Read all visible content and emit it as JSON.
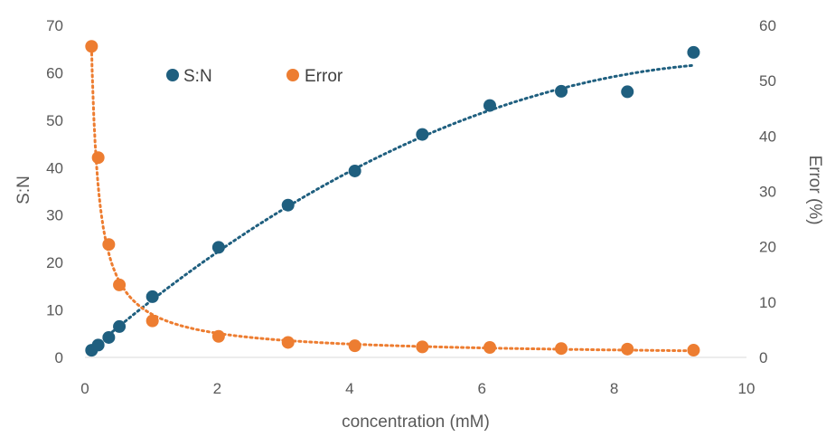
{
  "chart_data": {
    "type": "scatter",
    "xlabel": "concentration (mM)",
    "ylabel": "S:N",
    "y2label": "Error (%)",
    "xlim": [
      0,
      10
    ],
    "ylim": [
      0,
      70
    ],
    "y2lim": [
      0,
      60
    ],
    "xticks": [
      0,
      2,
      4,
      6,
      8,
      10
    ],
    "yticks": [
      0,
      10,
      20,
      30,
      40,
      50,
      60,
      70
    ],
    "y2ticks": [
      0,
      10,
      20,
      30,
      40,
      50,
      60
    ],
    "legend_position": "top-left",
    "grid": false,
    "series": [
      {
        "name": "S:N",
        "axis": "left",
        "color": "#1f5f7f",
        "trendline": "dotted",
        "x": [
          0.1,
          0.2,
          0.36,
          0.52,
          1.02,
          2.02,
          3.07,
          4.08,
          5.1,
          6.12,
          7.2,
          8.2,
          9.2
        ],
        "y": [
          1.5,
          2.6,
          4.2,
          6.5,
          12.8,
          23.2,
          32.1,
          39.3,
          47.0,
          53.1,
          56.1,
          56.0,
          64.3
        ]
      },
      {
        "name": "Error",
        "axis": "right",
        "color": "#ed7d31",
        "trendline": "dotted",
        "x": [
          0.1,
          0.2,
          0.36,
          0.52,
          1.02,
          2.02,
          3.07,
          4.08,
          5.1,
          6.12,
          7.2,
          8.2,
          9.2
        ],
        "y": [
          56.2,
          36.1,
          20.4,
          13.1,
          6.6,
          3.8,
          2.7,
          2.1,
          1.9,
          1.8,
          1.6,
          1.5,
          1.3
        ]
      }
    ]
  }
}
